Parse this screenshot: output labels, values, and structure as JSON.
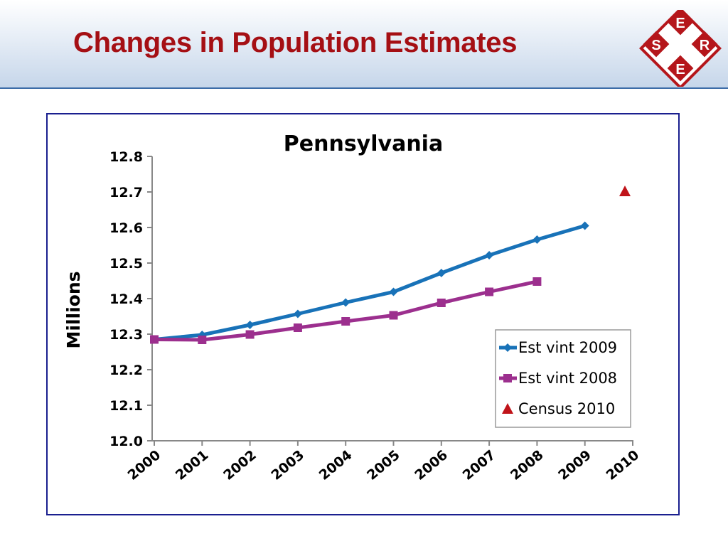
{
  "slide": {
    "title": "Changes in Population Estimates",
    "logo_letters": {
      "top": "E",
      "left": "S",
      "right": "R",
      "bottom": "E"
    }
  },
  "colors": {
    "title": "#a50f14",
    "logo_red": "#b5161b",
    "frame": "#1a1f8f",
    "series_2009": "#1872b8",
    "series_2008": "#9c2f8e",
    "census": "#c0141a"
  },
  "chart_data": {
    "type": "line",
    "title": "Pennsylvania",
    "xlabel": "",
    "ylabel": "Millions",
    "x": [
      "2000",
      "2001",
      "2002",
      "2003",
      "2004",
      "2005",
      "2006",
      "2007",
      "2008",
      "2009",
      "2010"
    ],
    "ylim": [
      12.0,
      12.8
    ],
    "yticks": [
      "12.0",
      "12.1",
      "12.2",
      "12.3",
      "12.4",
      "12.5",
      "12.6",
      "12.7",
      "12.8"
    ],
    "grid": false,
    "legend_position": "bottom-right",
    "series": [
      {
        "name": "Est vint 2009",
        "marker": "diamond",
        "color": "#1872b8",
        "values": [
          12.285,
          12.298,
          12.326,
          12.357,
          12.389,
          12.419,
          12.472,
          12.522,
          12.566,
          12.605,
          null
        ]
      },
      {
        "name": "Est vint 2008",
        "marker": "square",
        "color": "#9c2f8e",
        "values": [
          12.285,
          12.284,
          12.299,
          12.318,
          12.336,
          12.353,
          12.388,
          12.419,
          12.448,
          null,
          null
        ]
      },
      {
        "name": "Census 2010",
        "marker": "triangle",
        "color": "#c0141a",
        "values": [
          null,
          null,
          null,
          null,
          null,
          null,
          null,
          null,
          null,
          null,
          12.702
        ]
      }
    ]
  }
}
